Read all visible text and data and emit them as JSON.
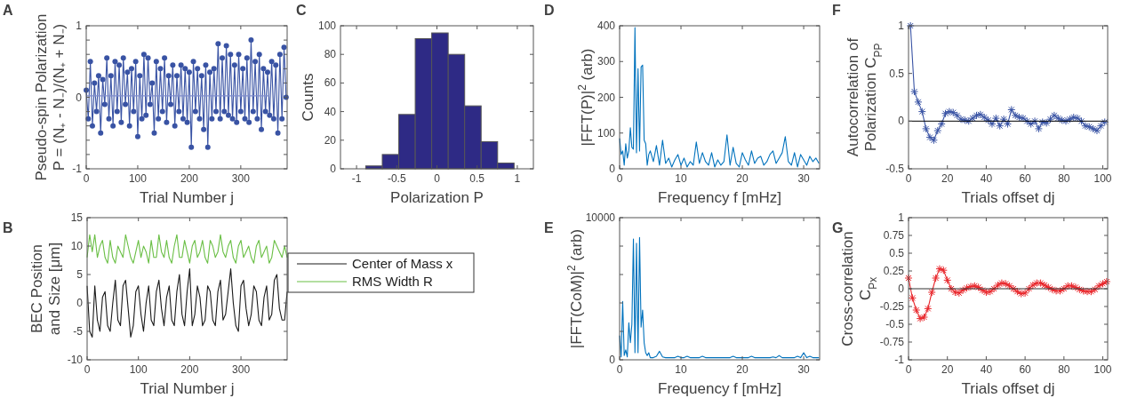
{
  "chart_data": [
    {
      "type": "line",
      "title": "A",
      "xlabel": "Trial Number j",
      "ylabel": "Pseudo-spin Polarization\nP = (N₊ - N₋)/(N₊ + N₋)",
      "xlim": [
        0,
        390
      ],
      "ylim": [
        -1,
        1
      ],
      "xticks": [
        0,
        100,
        200,
        300
      ],
      "yticks": [
        -1,
        {
          "value": -0.8,
          "label": null
        },
        {
          "value": -0.6,
          "label": null
        },
        {
          "value": -0.4,
          "label": null
        },
        {
          "value": -0.2,
          "label": null
        },
        0,
        {
          "value": 0.2,
          "label": null
        },
        {
          "value": 0.4,
          "label": null
        },
        {
          "value": 0.6,
          "label": null
        },
        {
          "value": 0.8,
          "label": null
        },
        1
      ],
      "marker": "circle",
      "series": [
        {
          "color": "#3953a4",
          "x": [
            0,
            4,
            8,
            12,
            16,
            20,
            24,
            28,
            32,
            36,
            40,
            44,
            48,
            52,
            56,
            60,
            64,
            68,
            72,
            76,
            80,
            84,
            88,
            92,
            96,
            100,
            104,
            108,
            112,
            116,
            120,
            124,
            128,
            132,
            136,
            140,
            144,
            148,
            152,
            156,
            160,
            164,
            168,
            172,
            176,
            180,
            184,
            188,
            192,
            196,
            200,
            204,
            208,
            212,
            216,
            220,
            224,
            228,
            232,
            236,
            240,
            244,
            248,
            252,
            256,
            260,
            264,
            268,
            272,
            276,
            280,
            284,
            288,
            292,
            296,
            300,
            304,
            308,
            312,
            316,
            320,
            324,
            328,
            332,
            336,
            340,
            344,
            348,
            352,
            356,
            360,
            364,
            368,
            372,
            376,
            380,
            384,
            388
          ],
          "values": [
            0.1,
            -0.3,
            0.5,
            -0.4,
            0.2,
            -0.2,
            0.3,
            -0.5,
            0.25,
            -0.1,
            0.55,
            -0.3,
            0.3,
            -0.4,
            0.5,
            -0.2,
            0.45,
            -0.35,
            0.55,
            -0.1,
            0.35,
            -0.4,
            0.4,
            -0.2,
            0.5,
            -0.55,
            0.3,
            -0.3,
            0.6,
            -0.25,
            0.55,
            -0.1,
            0.2,
            -0.5,
            0.5,
            -0.3,
            0.4,
            -0.2,
            0.55,
            -0.35,
            0.3,
            -0.1,
            0.45,
            -0.4,
            0.3,
            -0.2,
            0.45,
            -0.3,
            0.4,
            -0.35,
            0.35,
            -0.7,
            0.5,
            -0.2,
            0.4,
            -0.3,
            0.3,
            -0.45,
            0.45,
            -0.7,
            0.35,
            -0.3,
            0.4,
            -0.2,
            0.75,
            -0.3,
            0.55,
            -0.2,
            0.72,
            -0.25,
            0.6,
            -0.3,
            0.45,
            -0.35,
            0.6,
            -0.2,
            0.4,
            -0.3,
            0.55,
            -0.35,
            0.8,
            -0.2,
            0.5,
            -0.3,
            0.6,
            -0.45,
            0.4,
            -0.2,
            0.35,
            -0.25,
            0.5,
            -0.3,
            0.45,
            -0.5,
            0.6,
            -0.3,
            0.7,
            0.0
          ]
        },
        {
          "color": "#7f8ccc",
          "marker": "none",
          "x": [
            0,
            355
          ],
          "values": [
            0.02,
            0.02
          ]
        }
      ]
    },
    {
      "type": "line",
      "title": "B",
      "xlabel": "Trial Number j",
      "ylabel": "BEC Position\nand Size [μm]",
      "xlim": [
        0,
        390
      ],
      "ylim": [
        -10,
        15
      ],
      "xticks": [
        0,
        100,
        200,
        300
      ],
      "yticks": [
        -10,
        -5,
        0,
        5,
        10,
        15
      ],
      "legend": "right",
      "x": [
        0,
        5,
        10,
        15,
        20,
        25,
        30,
        35,
        40,
        45,
        50,
        55,
        60,
        65,
        70,
        75,
        80,
        85,
        90,
        95,
        100,
        105,
        110,
        115,
        120,
        125,
        130,
        135,
        140,
        145,
        150,
        155,
        160,
        165,
        170,
        175,
        180,
        185,
        190,
        195,
        200,
        205,
        210,
        215,
        220,
        225,
        230,
        235,
        240,
        245,
        250,
        255,
        260,
        265,
        270,
        275,
        280,
        285,
        290,
        295,
        300,
        305,
        310,
        315,
        320,
        325,
        330,
        335,
        340,
        345,
        350,
        355,
        360,
        365,
        370,
        375,
        380,
        385,
        390
      ],
      "series": [
        {
          "name": "Center of Mass x",
          "color": "#1a1a1a",
          "values": [
            3,
            -5,
            -6,
            3,
            -3,
            -5,
            1,
            2,
            -4,
            -5,
            0,
            4,
            -3,
            -4,
            3,
            4,
            -1,
            -6,
            -4,
            2,
            3,
            -2,
            -5,
            0,
            3,
            -3,
            -4,
            2,
            4,
            -1,
            -4,
            1,
            3,
            -3,
            -4,
            2,
            5,
            -2,
            -4,
            2,
            6,
            -4,
            -2,
            3,
            1,
            -4,
            -3,
            3,
            2,
            -3,
            -4,
            2,
            4,
            -3,
            -2,
            2,
            6,
            0,
            -4,
            -5,
            3,
            4,
            -1,
            -4,
            -2,
            3,
            2,
            -3,
            -4,
            1,
            3,
            -3,
            -2,
            4,
            5,
            -1,
            -3,
            -3,
            2
          ]
        },
        {
          "name": "RMS Width R",
          "color": "#6abf45",
          "values": [
            8,
            12,
            9,
            12,
            8,
            10,
            11,
            8,
            7,
            11,
            8,
            7,
            10,
            9,
            8,
            12,
            10,
            8,
            7,
            9,
            11,
            8,
            10,
            9,
            7,
            11,
            8,
            8,
            12,
            9,
            8,
            11,
            8,
            7,
            10,
            12,
            8,
            8,
            11,
            9,
            7,
            10,
            11,
            8,
            9,
            11,
            8,
            7,
            11,
            10,
            8,
            9,
            12,
            9,
            8,
            10,
            11,
            8,
            7,
            10,
            11,
            8,
            9,
            10,
            8,
            7,
            10,
            11,
            8,
            9,
            10,
            7,
            8,
            11,
            10,
            9,
            8,
            10,
            8
          ]
        }
      ]
    },
    {
      "type": "histogram",
      "title": "C",
      "xlabel": "Polarization P",
      "ylabel": "Counts",
      "xlim": [
        -1.2,
        1.2
      ],
      "ylim": [
        0,
        100
      ],
      "xticks": [
        -1,
        -0.5,
        0,
        0.5,
        1
      ],
      "yticks": [
        0,
        20,
        40,
        60,
        80,
        100
      ],
      "color": "#2e2a85",
      "bins": [
        -1.09,
        -0.886,
        -0.68,
        -0.475,
        -0.27,
        -0.065,
        0.14,
        0.345,
        0.55,
        0.755,
        0.96
      ],
      "values": [
        0,
        2,
        10,
        38,
        91,
        95,
        80,
        44,
        19,
        4
      ]
    },
    {
      "type": "line",
      "title": "D",
      "xlabel": "Frequency f [mHz]",
      "ylabel": "|FFT(P)|$^{2}$ (arb)",
      "xlim": [
        0,
        32.6
      ],
      "ylim": [
        0,
        400
      ],
      "xticks": [
        0,
        10,
        20,
        30
      ],
      "yticks": [
        0,
        100,
        200,
        300,
        400
      ],
      "x": [
        0,
        0.25,
        0.5,
        0.75,
        1,
        1.25,
        1.5,
        1.75,
        2,
        2.25,
        2.5,
        2.75,
        3,
        3.25,
        3.5,
        3.75,
        4,
        4.25,
        4.5,
        4.75,
        5,
        5.5,
        6,
        6.5,
        7,
        7.5,
        8,
        8.5,
        9,
        9.5,
        10,
        10.5,
        11,
        11.5,
        12,
        12.5,
        13,
        13.5,
        14,
        14.5,
        15,
        15.5,
        16,
        16.5,
        17,
        17.5,
        18,
        18.5,
        19,
        19.5,
        20,
        20.5,
        21,
        21.5,
        22,
        22.5,
        23,
        23.5,
        24,
        24.5,
        25,
        25.5,
        26,
        26.5,
        27,
        27.5,
        28,
        28.5,
        29,
        29.5,
        30,
        30.5,
        31,
        31.5,
        32,
        32.5
      ],
      "series": [
        {
          "color": "#0072bd",
          "values": [
            85,
            40,
            50,
            10,
            70,
            30,
            50,
            115,
            60,
            55,
            395,
            45,
            280,
            50,
            285,
            290,
            80,
            70,
            10,
            40,
            50,
            20,
            65,
            10,
            80,
            15,
            30,
            5,
            25,
            40,
            10,
            30,
            5,
            20,
            10,
            75,
            15,
            45,
            20,
            10,
            45,
            5,
            25,
            10,
            20,
            95,
            10,
            60,
            15,
            5,
            45,
            25,
            10,
            50,
            15,
            30,
            35,
            10,
            20,
            40,
            50,
            15,
            30,
            45,
            90,
            20,
            10,
            45,
            5,
            40,
            25,
            10,
            35,
            20,
            30,
            15
          ]
        }
      ]
    },
    {
      "type": "line",
      "title": "E",
      "xlabel": "Frequency f [mHz]",
      "ylabel": "|FFT(CoM)|$^{2}$ (arb)",
      "xlim": [
        0,
        32.6
      ],
      "ylim": [
        0,
        10000
      ],
      "xticks": [
        0,
        10,
        20,
        30
      ],
      "yticks": [
        0,
        {
          "value": 2000,
          "label": null
        },
        {
          "value": 4000,
          "label": null
        },
        {
          "value": 6000,
          "label": null
        },
        {
          "value": 8000,
          "label": null
        },
        10000
      ],
      "x": [
        0,
        0.25,
        0.5,
        0.75,
        1,
        1.25,
        1.5,
        1.75,
        2,
        2.25,
        2.5,
        2.75,
        3,
        3.25,
        3.5,
        3.75,
        4,
        4.25,
        4.5,
        4.75,
        5,
        5.5,
        6,
        6.5,
        7,
        7.5,
        8,
        8.5,
        9,
        9.5,
        10,
        10.5,
        11,
        11.5,
        12,
        12.5,
        13,
        13.5,
        14,
        14.5,
        15,
        15.5,
        16,
        16.5,
        17,
        17.5,
        18,
        18.5,
        19,
        19.5,
        20,
        20.5,
        21,
        21.5,
        22,
        22.5,
        23,
        23.5,
        24,
        24.5,
        25,
        25.5,
        26,
        26.5,
        27,
        27.5,
        28,
        28.5,
        29,
        29.5,
        30,
        30.5,
        31,
        31.5,
        32,
        32.5
      ],
      "series": [
        {
          "color": "#0072bd",
          "values": [
            1700,
            200,
            4100,
            300,
            700,
            200,
            2600,
            1200,
            2500,
            8500,
            500,
            8200,
            500,
            8600,
            2300,
            3500,
            1200,
            500,
            300,
            500,
            150,
            150,
            250,
            600,
            200,
            150,
            150,
            150,
            150,
            250,
            150,
            150,
            250,
            150,
            150,
            150,
            150,
            250,
            150,
            150,
            150,
            150,
            150,
            150,
            150,
            150,
            150,
            250,
            150,
            150,
            150,
            150,
            150,
            250,
            150,
            150,
            150,
            150,
            150,
            150,
            200,
            150,
            300,
            150,
            150,
            150,
            150,
            150,
            250,
            150,
            500,
            150,
            250,
            150,
            150,
            150
          ]
        }
      ]
    },
    {
      "type": "line",
      "title": "F",
      "xlabel": "Trials offset dj",
      "ylabel": "Autocorrelation of\nPolarization C$_{PP}$",
      "xlim": [
        0,
        102.5
      ],
      "ylim": [
        -0.5,
        1
      ],
      "xticks": [
        0,
        20,
        40,
        60,
        80,
        100
      ],
      "yticks": [
        -0.5,
        0,
        0.5,
        1
      ],
      "marker": "cross",
      "ref_lines": [
        {
          "axis": "y",
          "value": 0,
          "color": "#000000"
        }
      ],
      "series": [
        {
          "color": "#3953a4",
          "x": [
            1,
            3,
            5,
            7,
            9,
            11,
            13,
            15,
            17,
            19,
            21,
            23,
            25,
            27,
            29,
            31,
            33,
            35,
            37,
            39,
            41,
            43,
            45,
            47,
            49,
            51,
            53,
            55,
            57,
            59,
            61,
            63,
            65,
            67,
            69,
            71,
            73,
            75,
            77,
            79,
            81,
            83,
            85,
            87,
            89,
            91,
            93,
            95,
            97,
            99,
            101
          ],
          "values": [
            1,
            0.31,
            0.2,
            0.1,
            -0.08,
            -0.17,
            -0.2,
            -0.1,
            -0.03,
            0.08,
            0.1,
            0.09,
            0.06,
            0.02,
            0.01,
            0.0,
            0.03,
            0.06,
            0.07,
            0.04,
            0.01,
            -0.03,
            0.03,
            -0.05,
            0.02,
            -0.03,
            0.12,
            0.06,
            0.04,
            0.03,
            0.0,
            -0.03,
            0.0,
            -0.08,
            -0.01,
            -0.02,
            0.02,
            0.06,
            0.03,
            0.01,
            0.0,
            0.02,
            0.04,
            0.03,
            0.0,
            -0.05,
            -0.06,
            -0.08,
            -0.1,
            -0.05,
            -0.01
          ]
        }
      ]
    },
    {
      "type": "line",
      "title": "G",
      "xlabel": "Trials offset dj",
      "ylabel": "Cross-correlation\nC$_{Px}$",
      "xlim": [
        0,
        102.5
      ],
      "ylim": [
        -1,
        1
      ],
      "xticks": [
        0,
        20,
        40,
        60,
        80,
        100
      ],
      "yticks": [
        -1,
        -0.75,
        -0.5,
        -0.25,
        0,
        0.25,
        0.5,
        0.75,
        1
      ],
      "marker": "cross",
      "ref_lines": [
        {
          "axis": "y",
          "value": 0,
          "color": "#333333"
        }
      ],
      "series": [
        {
          "color": "#e8262b",
          "x": [
            0,
            2,
            4,
            6,
            8,
            10,
            12,
            14,
            16,
            18,
            20,
            22,
            24,
            26,
            28,
            30,
            32,
            34,
            36,
            38,
            40,
            42,
            44,
            46,
            48,
            50,
            52,
            54,
            56,
            58,
            60,
            62,
            64,
            66,
            68,
            70,
            72,
            74,
            76,
            78,
            80,
            82,
            84,
            86,
            88,
            90,
            92,
            94,
            96,
            98,
            100,
            102
          ],
          "values": [
            0.15,
            -0.13,
            -0.3,
            -0.42,
            -0.4,
            -0.28,
            -0.05,
            0.15,
            0.28,
            0.26,
            0.12,
            0,
            -0.05,
            -0.06,
            -0.02,
            0.01,
            0.03,
            0.04,
            0.02,
            -0.02,
            -0.05,
            -0.04,
            0,
            0.05,
            0.08,
            0.07,
            0.04,
            0,
            -0.04,
            -0.07,
            -0.06,
            0,
            0.05,
            0.08,
            0.08,
            0.05,
            0.02,
            -0.01,
            -0.03,
            -0.03,
            0,
            0.04,
            0.04,
            0.02,
            -0.01,
            -0.03,
            -0.04,
            -0.04,
            -0.01,
            0.04,
            0.07,
            0.1
          ]
        }
      ]
    }
  ]
}
